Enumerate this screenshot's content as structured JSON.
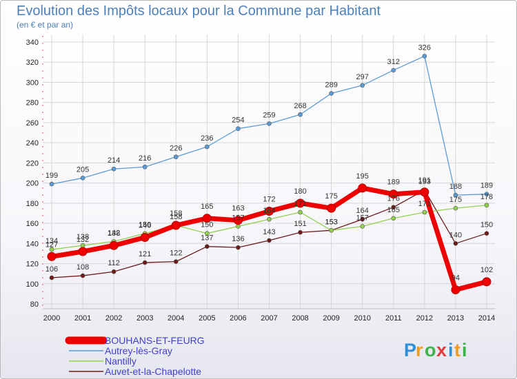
{
  "page": {
    "title": "Evolution des Impôts locaux pour la Commune par Habitant",
    "subtitle": "(en € et par an)",
    "logo": "Proxiti"
  },
  "chart_data": {
    "type": "line",
    "title": "Evolution des Impôts locaux pour la Commune par Habitant",
    "subtitle": "(en € et par an)",
    "xlabel": "",
    "ylabel": "",
    "ylim": [
      80,
      340
    ],
    "yticks": [
      80,
      100,
      120,
      140,
      160,
      180,
      200,
      220,
      240,
      260,
      280,
      300,
      320,
      340
    ],
    "grid": true,
    "legend_position": "bottom-left",
    "x": [
      "2000",
      "2001",
      "2002",
      "2003",
      "2004",
      "2005",
      "2006",
      "2007",
      "2008",
      "2009",
      "2010",
      "2011",
      "2012",
      "2013",
      "2014"
    ],
    "series": [
      {
        "name": "Auvet-et-la-Chapelotte",
        "color": "#6b1a1a",
        "width": 1.3,
        "marker": 3,
        "values": [
          106,
          108,
          112,
          121,
          122,
          137,
          136,
          143,
          151,
          153,
          164,
          176,
          193,
          140,
          150
        ]
      },
      {
        "name": "Nantilly",
        "color": "#8fd14f",
        "width": 1.3,
        "marker": 3,
        "values": [
          134,
          138,
          142,
          150,
          158,
          150,
          157,
          164,
          171,
          153,
          157,
          165,
          171,
          175,
          178
        ]
      },
      {
        "name": "Autrey-lès-Gray",
        "color": "#5b9bd5",
        "width": 1.3,
        "marker": 3,
        "values": [
          199,
          205,
          214,
          216,
          226,
          236,
          254,
          259,
          268,
          289,
          297,
          312,
          326,
          188,
          189
        ]
      },
      {
        "name": "BOUHANS-ET-FEURG",
        "color": "#ee0000",
        "width": 7,
        "marker": 6,
        "values": [
          127,
          132,
          138,
          146,
          158,
          165,
          163,
          172,
          180,
          175,
          195,
          189,
          191,
          94,
          102
        ]
      }
    ],
    "legend_order": [
      "BOUHANS-ET-FEURG",
      "Autrey-lès-Gray",
      "Nantilly",
      "Auvet-et-la-Chapelotte"
    ]
  }
}
